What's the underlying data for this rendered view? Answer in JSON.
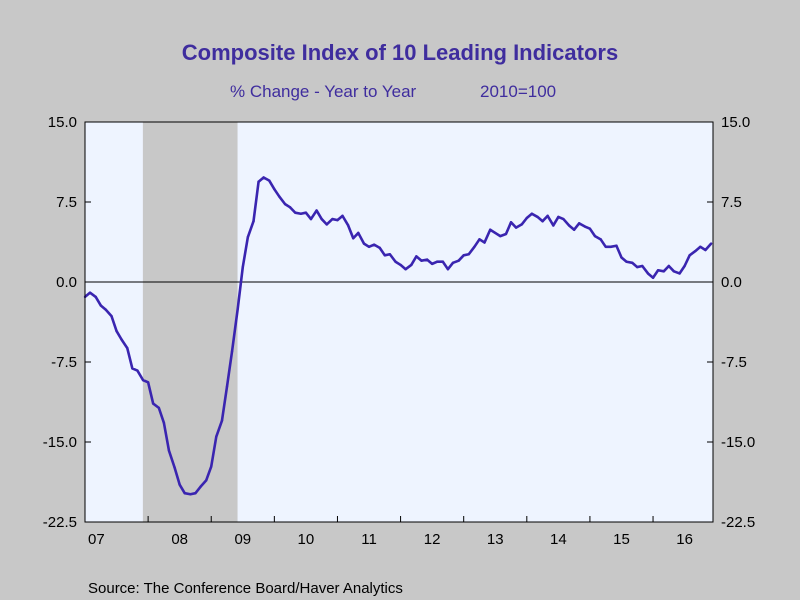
{
  "chart_data": {
    "type": "line",
    "title": "Composite Index of 10 Leading Indicators",
    "subtitle": "% Change - Year to Year",
    "subtitle_note": "2010=100",
    "source": "Source:  The Conference Board/Haver Analytics",
    "ylim": [
      -22.5,
      15.0
    ],
    "y_ticks": [
      15.0,
      7.5,
      0.0,
      -7.5,
      -15.0,
      -22.5
    ],
    "y_tick_labels": [
      "15.0",
      "7.5",
      "0.0",
      "-7.5",
      "-15.0",
      "-22.5"
    ],
    "x_range": [
      2007.0,
      2016.95
    ],
    "x_ticks": [
      2007,
      2008,
      2009,
      2010,
      2011,
      2012,
      2013,
      2014,
      2015,
      2016
    ],
    "x_tick_labels": [
      "07",
      "08",
      "09",
      "10",
      "11",
      "12",
      "13",
      "14",
      "15",
      "16"
    ],
    "recession": {
      "start": 2007.917,
      "end": 2009.417
    },
    "grid": false,
    "zero_line": true,
    "colors": {
      "line": "#3a25b0",
      "plot_bg": "#eef4ff",
      "recession": "#c8c8c8",
      "outer_bg": "#c8c8c8",
      "title": "#3f2d9e"
    },
    "series": [
      {
        "x": [
          2007.0,
          2007.08,
          2007.17,
          2007.25,
          2007.33,
          2007.42,
          2007.5,
          2007.58,
          2007.67,
          2007.75,
          2007.83,
          2007.92,
          2008.0,
          2008.08,
          2008.17,
          2008.25,
          2008.33,
          2008.42,
          2008.5,
          2008.58,
          2008.67,
          2008.75,
          2008.83,
          2008.92,
          2009.0,
          2009.08,
          2009.17,
          2009.25,
          2009.33,
          2009.42,
          2009.5,
          2009.58,
          2009.67,
          2009.75,
          2009.83,
          2009.92,
          2010.0,
          2010.08,
          2010.17,
          2010.25,
          2010.33,
          2010.42,
          2010.5,
          2010.58,
          2010.67,
          2010.75,
          2010.83,
          2010.92,
          2011.0,
          2011.08,
          2011.17,
          2011.25,
          2011.33,
          2011.42,
          2011.5,
          2011.58,
          2011.67,
          2011.75,
          2011.83,
          2011.92,
          2012.0,
          2012.08,
          2012.17,
          2012.25,
          2012.33,
          2012.42,
          2012.5,
          2012.58,
          2012.67,
          2012.75,
          2012.83,
          2012.92,
          2013.0,
          2013.08,
          2013.17,
          2013.25,
          2013.33,
          2013.42,
          2013.5,
          2013.58,
          2013.67,
          2013.75,
          2013.83,
          2013.92,
          2014.0,
          2014.08,
          2014.17,
          2014.25,
          2014.33,
          2014.42,
          2014.5,
          2014.58,
          2014.67,
          2014.75,
          2014.83,
          2014.92,
          2015.0,
          2015.08,
          2015.17,
          2015.25,
          2015.33,
          2015.42,
          2015.5,
          2015.58,
          2015.67,
          2015.75,
          2015.83,
          2015.92,
          2016.0,
          2016.08,
          2016.17,
          2016.25,
          2016.33,
          2016.42,
          2016.5,
          2016.58,
          2016.67,
          2016.75,
          2016.83,
          2016.92
        ],
        "values": [
          -1.4,
          -1.0,
          -1.4,
          -2.2,
          -2.6,
          -3.2,
          -4.6,
          -5.4,
          -6.2,
          -8.1,
          -8.3,
          -9.2,
          -9.4,
          -11.4,
          -11.8,
          -13.2,
          -15.8,
          -17.4,
          -19.0,
          -19.8,
          -19.9,
          -19.8,
          -19.2,
          -18.6,
          -17.3,
          -14.5,
          -13.0,
          -9.8,
          -6.5,
          -2.5,
          1.4,
          4.2,
          5.7,
          9.4,
          9.8,
          9.5,
          8.7,
          8.0,
          7.3,
          7.0,
          6.5,
          6.4,
          6.5,
          5.9,
          6.7,
          5.9,
          5.4,
          5.9,
          5.8,
          6.2,
          5.3,
          4.1,
          4.6,
          3.6,
          3.3,
          3.5,
          3.2,
          2.5,
          2.6,
          1.9,
          1.6,
          1.2,
          1.6,
          2.4,
          2.0,
          2.1,
          1.7,
          1.9,
          1.9,
          1.2,
          1.8,
          2.0,
          2.5,
          2.6,
          3.3,
          4.0,
          3.7,
          4.9,
          4.6,
          4.3,
          4.5,
          5.6,
          5.1,
          5.4,
          6.0,
          6.4,
          6.1,
          5.7,
          6.2,
          5.3,
          6.1,
          5.9,
          5.3,
          4.9,
          5.5,
          5.2,
          5.0,
          4.3,
          4.0,
          3.3,
          3.3,
          3.4,
          2.3,
          1.9,
          1.8,
          1.4,
          1.5,
          0.8,
          0.4,
          1.1,
          1.0,
          1.5,
          1.0,
          0.8,
          1.5,
          2.5,
          2.9,
          3.3,
          3.0,
          3.6
        ]
      }
    ]
  }
}
